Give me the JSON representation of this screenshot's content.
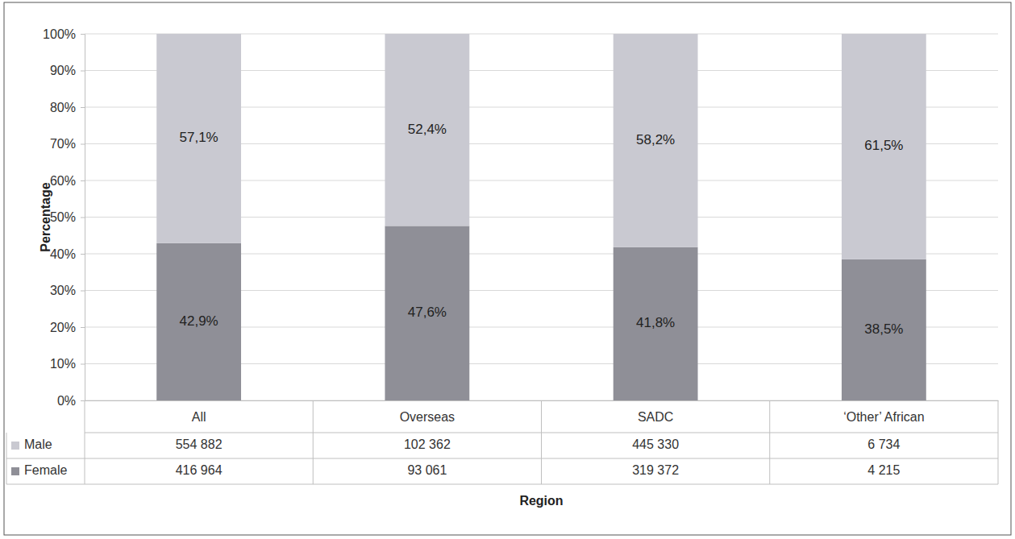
{
  "chart_data": {
    "type": "bar",
    "stacked": true,
    "data_labels": true,
    "grid": true,
    "x_label": "Region",
    "y_label": "Percentage",
    "categories": [
      "All",
      "Overseas",
      "SADC",
      "‘Other’ African"
    ],
    "series": [
      {
        "name": "Male",
        "color": "#c9c9d1",
        "values": [
          57.1,
          52.4,
          58.2,
          61.5
        ],
        "value_labels": [
          "57,1%",
          "52,4%",
          "58,2%",
          "61,5%"
        ],
        "counts": [
          554882,
          102362,
          445330,
          6734
        ],
        "count_labels": [
          "554 882",
          "102 362",
          "445 330",
          "6 734"
        ]
      },
      {
        "name": "Female",
        "color": "#8f8f97",
        "values": [
          42.9,
          47.6,
          41.8,
          38.5
        ],
        "value_labels": [
          "42,9%",
          "47,6%",
          "41,8%",
          "38,5%"
        ],
        "counts": [
          416964,
          93061,
          319372,
          4215
        ],
        "count_labels": [
          "416 964",
          "93 061",
          "319 372",
          "4 215"
        ]
      }
    ],
    "ylim": [
      0,
      100
    ],
    "yticks": [
      {
        "value": 0,
        "label": "0%"
      },
      {
        "value": 10,
        "label": "10%"
      },
      {
        "value": 20,
        "label": "20%"
      },
      {
        "value": 30,
        "label": "30%"
      },
      {
        "value": 40,
        "label": "40%"
      },
      {
        "value": 50,
        "label": "50%"
      },
      {
        "value": 60,
        "label": "60%"
      },
      {
        "value": 70,
        "label": "70%"
      },
      {
        "value": 80,
        "label": "80%"
      },
      {
        "value": 90,
        "label": "90%"
      },
      {
        "value": 100,
        "label": "100%"
      }
    ]
  }
}
